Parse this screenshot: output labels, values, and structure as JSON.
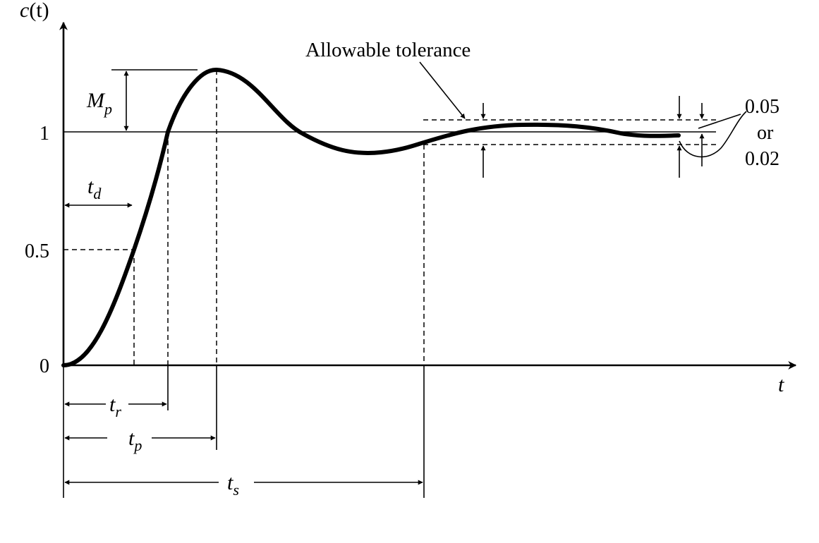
{
  "axes": {
    "y_label": {
      "main": "c",
      "paren": "(t)"
    },
    "x_label": "t",
    "y_ticks": [
      "1",
      "0.5",
      "0"
    ]
  },
  "annotations": {
    "overshoot": {
      "main": "M",
      "sub": "p"
    },
    "delay_time": {
      "main": "t",
      "sub": "d"
    },
    "rise_time": {
      "main": "t",
      "sub": "r"
    },
    "peak_time": {
      "main": "t",
      "sub": "p"
    },
    "settling_time": {
      "main": "t",
      "sub": "s"
    },
    "tolerance_label": "Allowable tolerance",
    "tolerance_values": [
      "0.05",
      "or",
      "0.02"
    ]
  }
}
